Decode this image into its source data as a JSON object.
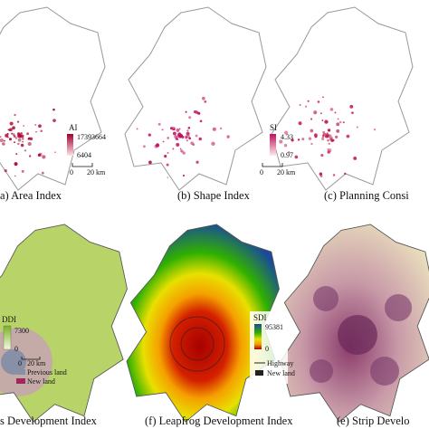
{
  "panels": [
    {
      "caption": "a) Area Index",
      "legend_title": "AI",
      "legend_max": "17393664",
      "legend_min": "6404",
      "scale_start": "0",
      "scale_end": "20 km"
    },
    {
      "caption": "(b) Shape Index",
      "legend_title": "SI",
      "legend_max": "4.33",
      "legend_min": "0.97",
      "scale_start": "0",
      "scale_end": "20 km"
    },
    {
      "caption": "(c) Planning Consi"
    },
    {
      "caption": "s Development Index",
      "legend_title": "DDI",
      "legend_max": "7300",
      "legend_min": "0",
      "scale_start": "0",
      "scale_end": "20 km",
      "previous_land": "Previous land",
      "new_land": "New land"
    },
    {
      "caption": "(f) Leapfrog Development Index",
      "legend_title": "SDI",
      "legend_max": "95381",
      "legend_min": "0",
      "highway": "Highway",
      "new_land": "New land"
    },
    {
      "caption": "(e) Strip Develo"
    }
  ]
}
